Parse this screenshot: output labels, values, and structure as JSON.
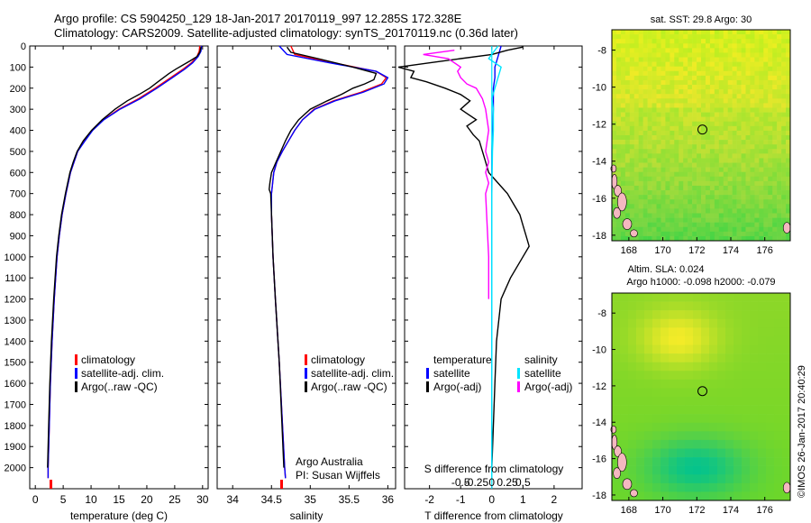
{
  "header": {
    "line1": "Argo profile: CS 5904250_129 18-Jan-2017 20170119_997 12.285S 172.328E",
    "line2": "Climatology: CARS2009. Satellite-adjusted climatology: synTS_20170119.nc (0.36d later)"
  },
  "colors": {
    "climatology": "#ff0000",
    "satellite": "#0000ff",
    "argo": "#000000",
    "satellite_diff": "#00e5ff",
    "salinity_argo_diff": "#ff00ff"
  },
  "chart_data": [
    {
      "id": "temperature",
      "type": "line",
      "xlabel": "temperature (deg C)",
      "ylabel": "",
      "xlim": [
        -1,
        31
      ],
      "ylim": [
        2100,
        0
      ],
      "x_ticks": [
        0,
        5,
        10,
        15,
        20,
        25,
        30
      ],
      "y_ticks": [
        0,
        100,
        200,
        300,
        400,
        500,
        600,
        700,
        800,
        900,
        1000,
        1100,
        1200,
        1300,
        1400,
        1500,
        1600,
        1700,
        1800,
        1900,
        2000
      ],
      "legend": [
        "climatology",
        "satellite-adj. clim.",
        "Argo(..raw -QC)"
      ],
      "series": [
        {
          "name": "climatology",
          "color": "#ff0000",
          "depth": [
            0,
            25,
            50,
            80,
            110,
            150,
            200,
            250,
            300,
            350,
            400,
            450,
            500,
            600,
            700,
            800,
            900,
            1000,
            1200,
            1400,
            1600,
            1800,
            2000,
            2050
          ],
          "values": [
            29.5,
            29.4,
            29.0,
            28.0,
            26.5,
            24.3,
            21.5,
            18.5,
            15.0,
            12.2,
            10.2,
            8.8,
            7.6,
            6.3,
            5.5,
            4.8,
            4.3,
            3.9,
            3.4,
            3.0,
            2.7,
            2.5,
            2.3,
            2.3
          ]
        },
        {
          "name": "satellite-adj. clim.",
          "color": "#0000ff",
          "depth": [
            0,
            25,
            50,
            80,
            110,
            150,
            200,
            250,
            300,
            350,
            400,
            450,
            500,
            600,
            700,
            800,
            900,
            1000,
            1200,
            1400,
            1600,
            1800,
            2000,
            2050
          ],
          "values": [
            29.8,
            29.7,
            29.2,
            28.2,
            26.8,
            24.6,
            21.8,
            18.8,
            15.2,
            12.3,
            10.3,
            8.9,
            7.6,
            6.3,
            5.5,
            4.8,
            4.3,
            3.9,
            3.4,
            3.0,
            2.7,
            2.5,
            2.3,
            2.3
          ]
        },
        {
          "name": "Argo(..raw -QC)",
          "color": "#000000",
          "depth": [
            5,
            30,
            50,
            70,
            90,
            110,
            130,
            150,
            170,
            200,
            230,
            260,
            300,
            350,
            400,
            450,
            500,
            550,
            600,
            650,
            700,
            800,
            900,
            1000,
            1200,
            1400,
            1600,
            1800,
            2000
          ],
          "values": [
            29.7,
            29.5,
            29.0,
            27.8,
            26.5,
            25.2,
            24.0,
            23.0,
            22.0,
            20.5,
            18.6,
            16.5,
            14.3,
            12.0,
            10.1,
            8.6,
            7.5,
            6.8,
            6.2,
            5.8,
            5.4,
            4.7,
            4.2,
            3.8,
            3.3,
            2.9,
            2.6,
            2.4,
            2.2
          ]
        }
      ]
    },
    {
      "id": "salinity",
      "type": "line",
      "xlabel": "salinity",
      "ylabel": "",
      "xlim": [
        33.8,
        36.1
      ],
      "ylim": [
        2100,
        0
      ],
      "x_ticks": [
        34,
        34.5,
        35,
        35.5,
        36
      ],
      "legend": [
        "climatology",
        "satellite-adj. clim.",
        "Argo(..raw -QC)"
      ],
      "annotation": [
        "Argo Australia",
        "PI: Susan Wijffels"
      ],
      "series": [
        {
          "name": "climatology",
          "color": "#ff0000",
          "depth": [
            0,
            40,
            80,
            120,
            150,
            180,
            220,
            260,
            300,
            350,
            400,
            450,
            500,
            550,
            600,
            700,
            800,
            1000,
            1200,
            1500,
            2000,
            2050
          ],
          "values": [
            34.75,
            34.8,
            35.3,
            35.85,
            35.98,
            35.92,
            35.65,
            35.3,
            35.05,
            34.9,
            34.8,
            34.72,
            34.64,
            34.57,
            34.53,
            34.5,
            34.5,
            34.52,
            34.55,
            34.6,
            34.67,
            34.68
          ]
        },
        {
          "name": "satellite-adj. clim.",
          "color": "#0000ff",
          "depth": [
            0,
            40,
            80,
            120,
            150,
            180,
            220,
            260,
            300,
            350,
            400,
            450,
            500,
            550,
            600,
            700,
            800,
            1000,
            1200,
            1500,
            2000,
            2050
          ],
          "values": [
            34.6,
            34.7,
            35.25,
            35.85,
            36.0,
            35.95,
            35.68,
            35.32,
            35.06,
            34.9,
            34.8,
            34.72,
            34.64,
            34.57,
            34.53,
            34.5,
            34.5,
            34.52,
            34.55,
            34.6,
            34.67,
            34.68
          ]
        },
        {
          "name": "Argo(..raw -QC)",
          "color": "#000000",
          "depth": [
            5,
            30,
            60,
            100,
            130,
            160,
            180,
            200,
            230,
            260,
            300,
            350,
            400,
            450,
            500,
            550,
            600,
            650,
            680,
            700,
            800,
            1000,
            1200,
            1500,
            2000
          ],
          "values": [
            34.7,
            34.75,
            35.1,
            35.55,
            35.85,
            35.82,
            35.7,
            35.55,
            35.4,
            35.22,
            35.0,
            34.85,
            34.75,
            34.68,
            34.62,
            34.56,
            34.5,
            34.48,
            34.47,
            34.49,
            34.5,
            34.52,
            34.55,
            34.6,
            34.66
          ]
        }
      ]
    },
    {
      "id": "differences",
      "type": "line",
      "xlabel": "T difference from climatology",
      "title_bottom": "S difference from climatology",
      "xlim": [
        -2.8,
        2.9
      ],
      "ylim": [
        2100,
        0
      ],
      "x_ticks": [
        -2,
        -1,
        0,
        1,
        2
      ],
      "s_ticks": [
        "-0.5",
        "-0.25",
        "0",
        "0.25",
        "0.5"
      ],
      "legend_headers": [
        "temperature",
        "salinity"
      ],
      "legend": [
        "satellite",
        "Argo(-adj)",
        "satellite",
        "Argo(-adj)"
      ],
      "series": [
        {
          "name": "satellite",
          "color": "#0000ff",
          "depth": [
            0,
            50,
            100,
            150,
            200,
            300,
            500,
            800,
            1200,
            1600,
            2000
          ],
          "values": [
            0.3,
            0.2,
            0.1,
            0.1,
            0.05,
            0.05,
            0.0,
            0.0,
            0.0,
            0.0,
            0.0
          ]
        },
        {
          "name": "Argo(-adj)",
          "color": "#000000",
          "depth": [
            5,
            20,
            40,
            60,
            80,
            100,
            120,
            150,
            170,
            200,
            230,
            260,
            300,
            320,
            350,
            380,
            400,
            420,
            450,
            500,
            550,
            600,
            650,
            700,
            750,
            800,
            850,
            900,
            950,
            1000,
            1100,
            1200,
            1400,
            1600,
            1800,
            2000
          ],
          "values": [
            1.0,
            0.5,
            0.0,
            -1.0,
            -2.0,
            -3.0,
            -2.5,
            -2.6,
            -2.1,
            -1.5,
            -1.0,
            -0.7,
            -1.0,
            -0.8,
            -0.5,
            -0.8,
            -0.7,
            -0.6,
            -0.4,
            -0.3,
            -0.2,
            -0.1,
            0.2,
            0.5,
            0.7,
            0.9,
            1.0,
            1.1,
            1.2,
            1.0,
            0.6,
            0.3,
            0.15,
            0.1,
            0.05,
            0.0
          ]
        },
        {
          "name": "satellite",
          "color": "#00e5ff",
          "depth": [
            0,
            30,
            60,
            100,
            150,
            200,
            250,
            300,
            400,
            500,
            700,
            900,
            1100,
            1300,
            1600,
            1900,
            2050
          ],
          "values": [
            0.2,
            0.05,
            -0.1,
            0.3,
            0.2,
            0.1,
            0.0,
            0.05,
            0.05,
            0.02,
            0.0,
            0.0,
            0.0,
            0.0,
            0.0,
            0.0,
            0.0
          ]
        },
        {
          "name": "Argo(-adj)",
          "color": "#ff00ff",
          "depth": [
            20,
            40,
            60,
            100,
            120,
            150,
            180,
            200,
            250,
            300,
            400,
            500,
            550,
            600,
            650,
            700,
            1000,
            1100,
            1200
          ],
          "values": [
            -1.2,
            -2.2,
            -1.4,
            -1.0,
            -1.1,
            -1.0,
            -0.8,
            -0.5,
            -0.3,
            -0.2,
            -0.1,
            -0.2,
            -0.1,
            -0.2,
            -0.1,
            -0.2,
            -0.1,
            -0.1,
            -0.1
          ]
        }
      ]
    },
    {
      "id": "sst_map",
      "type": "heatmap",
      "title": "sat. SST: 29.8  Argo: 30",
      "x_ticks": [
        168,
        170,
        172,
        174,
        176
      ],
      "y_ticks": [
        -8,
        -10,
        -12,
        -14,
        -16,
        -18
      ],
      "xlim": [
        167,
        177.5
      ],
      "ylim": [
        -18.3,
        -6.9
      ],
      "marker": {
        "lon": 172.33,
        "lat": -12.29
      }
    },
    {
      "id": "sla_map",
      "type": "heatmap",
      "title": "Altim. SLA: 0.024",
      "subtitle": "Argo h1000: -0.098  h2000: -0.079",
      "x_ticks": [
        168,
        170,
        172,
        174,
        176
      ],
      "y_ticks": [
        -8,
        -10,
        -12,
        -14,
        -16,
        -18
      ],
      "xlim": [
        167,
        177.5
      ],
      "ylim": [
        -18.3,
        -6.9
      ],
      "marker": {
        "lon": 172.33,
        "lat": -12.29
      }
    }
  ],
  "footer": {
    "stamp": "©IMOS 26-Jan-2017 20:40:29"
  }
}
